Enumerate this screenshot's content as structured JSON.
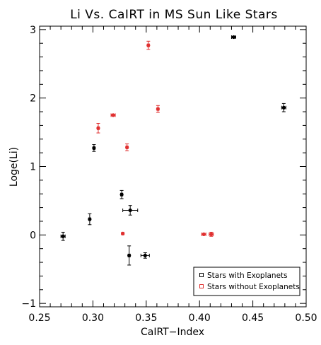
{
  "chart_data": {
    "type": "scatter",
    "title": "Li Vs. CaIRT in MS Sun Like Stars",
    "xlabel": "CaIRT−Index",
    "ylabel": "Loge(Li)",
    "xlim": [
      0.25,
      0.5
    ],
    "ylim": [
      -1.05,
      3.05
    ],
    "x_ticks": [
      0.25,
      0.3,
      0.35,
      0.4,
      0.45,
      0.5
    ],
    "x_tick_labels": [
      "0.25",
      "0.30",
      "0.35",
      "0.40",
      "0.45",
      "0.50"
    ],
    "y_ticks": [
      -1,
      0,
      1,
      2,
      3
    ],
    "y_tick_labels": [
      "−1",
      "0",
      "1",
      "2",
      "3"
    ],
    "grid": false,
    "legend_position": "bottom-right",
    "series": [
      {
        "name": "Stars with Exoplanets",
        "color": "#000000",
        "points": [
          {
            "x": 0.272,
            "y": -0.02,
            "xerr": 0.002,
            "yerr": 0.06
          },
          {
            "x": 0.297,
            "y": 0.23,
            "xerr": 0.001,
            "yerr": 0.08
          },
          {
            "x": 0.301,
            "y": 1.27,
            "xerr": 0.001,
            "yerr": 0.05
          },
          {
            "x": 0.327,
            "y": 0.59,
            "xerr": 0.001,
            "yerr": 0.06
          },
          {
            "x": 0.335,
            "y": 0.36,
            "xerr": 0.007,
            "yerr": 0.07
          },
          {
            "x": 0.334,
            "y": -0.3,
            "xerr": 0.001,
            "yerr": 0.14
          },
          {
            "x": 0.349,
            "y": -0.3,
            "xerr": 0.004,
            "yerr": 0.04
          },
          {
            "x": 0.432,
            "y": 2.89,
            "xerr": 0.002,
            "yerr": 0.01
          },
          {
            "x": 0.479,
            "y": 1.86,
            "xerr": 0.002,
            "yerr": 0.06
          }
        ]
      },
      {
        "name": "Stars without Exoplanets",
        "color": "#e03030",
        "points": [
          {
            "x": 0.305,
            "y": 1.56,
            "xerr": 0.001,
            "yerr": 0.07
          },
          {
            "x": 0.319,
            "y": 1.75,
            "xerr": 0.002,
            "yerr": 0.01
          },
          {
            "x": 0.328,
            "y": 0.02,
            "xerr": 0.001,
            "yerr": 0.01
          },
          {
            "x": 0.332,
            "y": 1.28,
            "xerr": 0.001,
            "yerr": 0.05
          },
          {
            "x": 0.352,
            "y": 2.77,
            "xerr": 0.001,
            "yerr": 0.06
          },
          {
            "x": 0.361,
            "y": 1.84,
            "xerr": 0.001,
            "yerr": 0.05
          },
          {
            "x": 0.404,
            "y": 0.01,
            "xerr": 0.002,
            "yerr": 0.01
          },
          {
            "x": 0.411,
            "y": 0.01,
            "xerr": 0.002,
            "yerr": 0.03
          }
        ]
      }
    ]
  }
}
